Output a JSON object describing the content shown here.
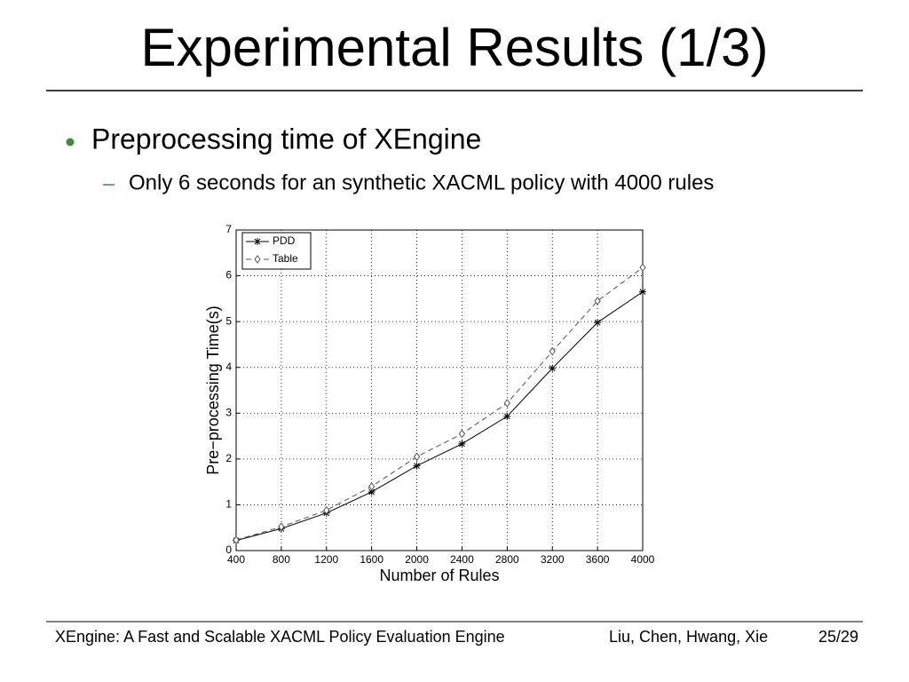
{
  "slide": {
    "title": "Experimental Results (1/3)",
    "bullet": "Preprocessing time of XEngine",
    "sub_bullet": "Only 6 seconds for an synthetic XACML policy with 4000 rules",
    "footer_left": "XEngine: A Fast and Scalable XACML Policy Evaluation Engine",
    "footer_authors": "Liu, Chen, Hwang, Xie",
    "page_number": "25/29"
  },
  "chart_data": {
    "type": "line",
    "x": [
      400,
      800,
      1200,
      1600,
      2000,
      2400,
      2800,
      3200,
      3600,
      4000
    ],
    "series": [
      {
        "name": "PDD",
        "color": "#000000",
        "style": "solid",
        "marker": "star",
        "values": [
          0.22,
          0.48,
          0.82,
          1.28,
          1.85,
          2.33,
          2.93,
          3.98,
          4.98,
          5.65
        ]
      },
      {
        "name": "Table",
        "color": "#555555",
        "style": "dashed",
        "marker": "diamond",
        "values": [
          0.23,
          0.52,
          0.88,
          1.4,
          2.05,
          2.55,
          3.22,
          4.35,
          5.45,
          6.18
        ]
      }
    ],
    "x_label": "Number of Rules",
    "y_label": "Pre−processing Time(s)",
    "xlim": [
      400,
      4000
    ],
    "xticks": [
      400,
      800,
      1200,
      1600,
      2000,
      2400,
      2800,
      3200,
      3600,
      4000
    ],
    "ylim": [
      0,
      7
    ],
    "yticks": [
      0,
      1,
      2,
      3,
      4,
      5,
      6,
      7
    ],
    "grid": true,
    "legend": "upper left"
  }
}
